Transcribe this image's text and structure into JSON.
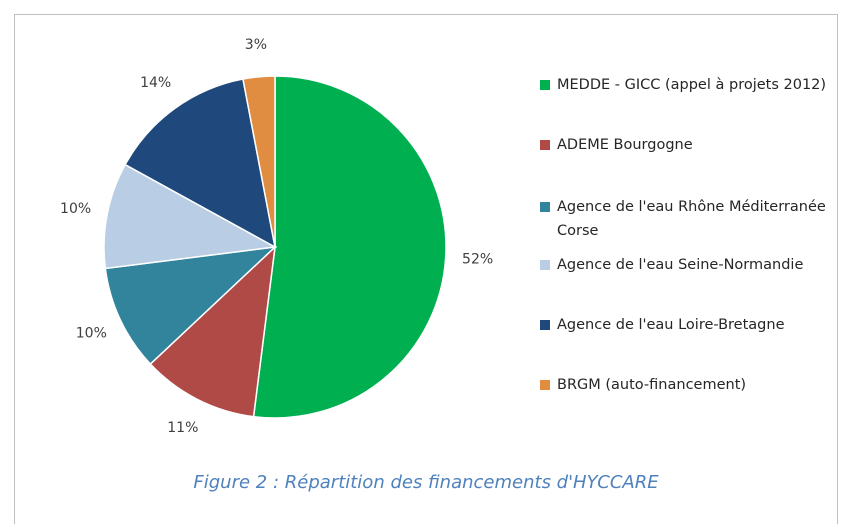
{
  "chart_data": {
    "type": "pie",
    "categories": [
      "MEDDE - GICC (appel à projets 2012)",
      "ADEME Bourgogne",
      "Agence de l'eau Rhône Méditerranée Corse",
      "Agence de l'eau Seine-Normandie",
      "Agence de l'eau Loire-Bretagne",
      "BRGM (auto-financement)"
    ],
    "values": [
      52,
      11,
      10,
      10,
      14,
      3
    ],
    "value_labels": [
      "52%",
      "11%",
      "10%",
      "10%",
      "14%",
      "3%"
    ],
    "colors": [
      "#00b050",
      "#b04a47",
      "#31849b",
      "#b9cde5",
      "#1f497d",
      "#e08c41"
    ],
    "legend": "right",
    "caption": "Figure 2 : Répartition des financements d'HYCCARE"
  }
}
